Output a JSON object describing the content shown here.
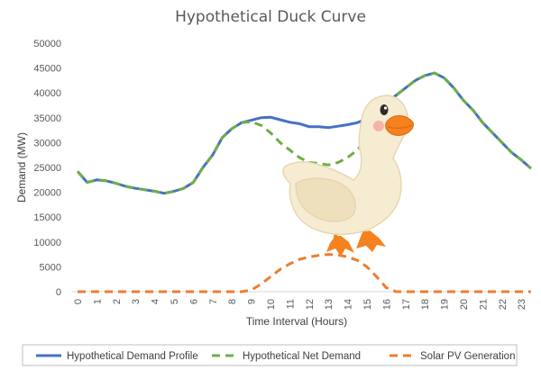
{
  "chart_data": {
    "type": "line",
    "title": "Hypothetical Duck Curve",
    "xlabel": "Time Interval (Hours)",
    "ylabel": "Demand (MW)",
    "ylim": [
      0,
      50000
    ],
    "yticks": [
      0,
      5000,
      10000,
      15000,
      20000,
      25000,
      30000,
      35000,
      40000,
      45000,
      50000
    ],
    "xticks": [
      "0",
      "1",
      "2",
      "3",
      "4",
      "5",
      "6",
      "7",
      "8",
      "9",
      "10",
      "11",
      "12",
      "13",
      "14",
      "15",
      "16",
      "17",
      "18",
      "19",
      "20",
      "21",
      "22",
      "23"
    ],
    "grid": false,
    "legend_position": "bottom",
    "series": [
      {
        "name": "Hypothetical Demand Profile",
        "color": "#4472c4",
        "style": "solid",
        "points": [
          [
            0,
            24200
          ],
          [
            0.5,
            22000
          ],
          [
            1,
            22500
          ],
          [
            1.5,
            22300
          ],
          [
            2,
            21800
          ],
          [
            2.5,
            21200
          ],
          [
            3,
            20800
          ],
          [
            3.5,
            20500
          ],
          [
            4,
            20200
          ],
          [
            4.5,
            19800
          ],
          [
            5,
            20200
          ],
          [
            5.5,
            20800
          ],
          [
            6,
            22000
          ],
          [
            6.5,
            25000
          ],
          [
            7,
            27500
          ],
          [
            7.5,
            31000
          ],
          [
            8,
            32800
          ],
          [
            8.5,
            34000
          ],
          [
            9,
            34500
          ],
          [
            9.5,
            35000
          ],
          [
            10,
            35100
          ],
          [
            10.5,
            34600
          ],
          [
            11,
            34100
          ],
          [
            11.5,
            33800
          ],
          [
            12,
            33200
          ],
          [
            12.5,
            33200
          ],
          [
            13,
            33000
          ],
          [
            13.5,
            33300
          ],
          [
            14,
            33600
          ],
          [
            14.5,
            34000
          ],
          [
            15,
            34800
          ],
          [
            15.5,
            36400
          ],
          [
            16,
            38000
          ],
          [
            16.5,
            39500
          ],
          [
            17,
            41000
          ],
          [
            17.5,
            42500
          ],
          [
            18,
            43500
          ],
          [
            18.5,
            44000
          ],
          [
            19,
            43000
          ],
          [
            19.5,
            41000
          ],
          [
            20,
            38500
          ],
          [
            20.5,
            36500
          ],
          [
            21,
            34000
          ],
          [
            21.5,
            32000
          ],
          [
            22,
            30000
          ],
          [
            22.5,
            28000
          ],
          [
            23,
            26500
          ],
          [
            23.5,
            24800
          ]
        ]
      },
      {
        "name": "Hypothetical Net Demand",
        "color": "#70ad47",
        "style": "dashed",
        "points": [
          [
            0,
            24200
          ],
          [
            0.5,
            22000
          ],
          [
            1,
            22500
          ],
          [
            1.5,
            22300
          ],
          [
            2,
            21800
          ],
          [
            2.5,
            21200
          ],
          [
            3,
            20800
          ],
          [
            3.5,
            20500
          ],
          [
            4,
            20200
          ],
          [
            4.5,
            19800
          ],
          [
            5,
            20200
          ],
          [
            5.5,
            20800
          ],
          [
            6,
            22000
          ],
          [
            6.5,
            25000
          ],
          [
            7,
            27500
          ],
          [
            7.5,
            31000
          ],
          [
            8,
            32800
          ],
          [
            8.5,
            34000
          ],
          [
            9,
            34200
          ],
          [
            9.5,
            33500
          ],
          [
            10,
            32000
          ],
          [
            10.5,
            30000
          ],
          [
            11,
            28500
          ],
          [
            11.5,
            27000
          ],
          [
            12,
            26000
          ],
          [
            12.5,
            25800
          ],
          [
            13,
            25500
          ],
          [
            13.5,
            26000
          ],
          [
            14,
            27000
          ],
          [
            14.5,
            28500
          ],
          [
            15,
            31000
          ],
          [
            15.5,
            34500
          ],
          [
            16,
            38000
          ],
          [
            16.5,
            39500
          ],
          [
            17,
            41000
          ],
          [
            17.5,
            42500
          ],
          [
            18,
            43500
          ],
          [
            18.5,
            44000
          ],
          [
            19,
            43000
          ],
          [
            19.5,
            41000
          ],
          [
            20,
            38500
          ],
          [
            20.5,
            36500
          ],
          [
            21,
            34000
          ],
          [
            21.5,
            32000
          ],
          [
            22,
            30000
          ],
          [
            22.5,
            28000
          ],
          [
            23,
            26500
          ],
          [
            23.5,
            24800
          ]
        ]
      },
      {
        "name": "Solar PV Generation",
        "color": "#ed7d31",
        "style": "dashed",
        "points": [
          [
            0,
            0
          ],
          [
            1,
            0
          ],
          [
            2,
            0
          ],
          [
            3,
            0
          ],
          [
            4,
            0
          ],
          [
            5,
            0
          ],
          [
            6,
            0
          ],
          [
            7,
            0
          ],
          [
            8,
            0
          ],
          [
            8.5,
            0
          ],
          [
            9,
            300
          ],
          [
            9.5,
            1500
          ],
          [
            10,
            3000
          ],
          [
            10.5,
            4500
          ],
          [
            11,
            5600
          ],
          [
            11.5,
            6500
          ],
          [
            12,
            7000
          ],
          [
            12.5,
            7300
          ],
          [
            13,
            7500
          ],
          [
            13.5,
            7400
          ],
          [
            14,
            7000
          ],
          [
            14.5,
            6300
          ],
          [
            15,
            5000
          ],
          [
            15.5,
            3000
          ],
          [
            16,
            800
          ],
          [
            16.5,
            0
          ],
          [
            17,
            0
          ],
          [
            18,
            0
          ],
          [
            19,
            0
          ],
          [
            20,
            0
          ],
          [
            21,
            0
          ],
          [
            22,
            0
          ],
          [
            23,
            0
          ],
          [
            23.5,
            0
          ]
        ]
      }
    ]
  },
  "image": {
    "subject": "duck-illustration"
  }
}
